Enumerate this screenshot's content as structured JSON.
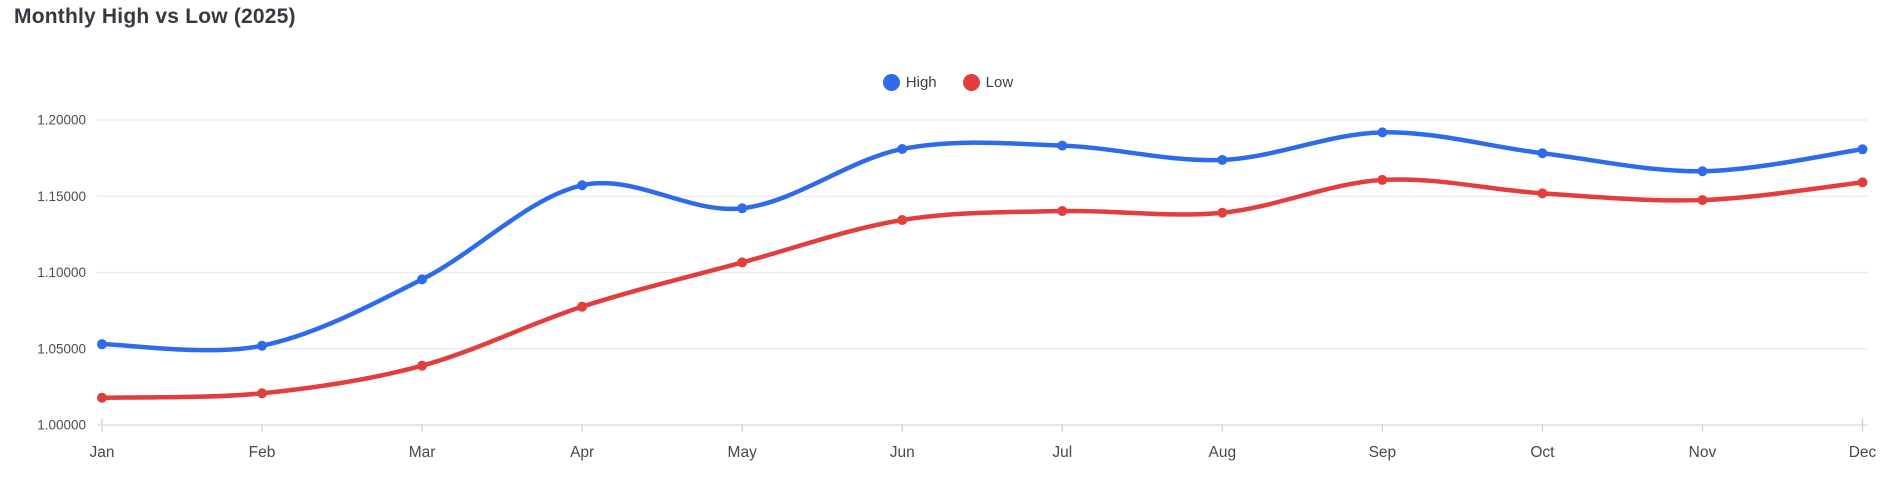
{
  "chart_data": {
    "type": "line",
    "title": "Monthly High vs Low (2025)",
    "categories": [
      "Jan",
      "Feb",
      "Mar",
      "Apr",
      "May",
      "Jun",
      "Jul",
      "Aug",
      "Sep",
      "Oct",
      "Nov",
      "Dec"
    ],
    "series": [
      {
        "name": "High",
        "color": "#2d6bea",
        "values": [
          1.053,
          1.052,
          1.0955,
          1.1572,
          1.1421,
          1.181,
          1.1832,
          1.1738,
          1.1919,
          1.1782,
          1.1664,
          1.1808
        ]
      },
      {
        "name": "Low",
        "color": "#e23e3e",
        "values": [
          1.0179,
          1.0208,
          1.0389,
          1.0776,
          1.1066,
          1.1344,
          1.1403,
          1.1392,
          1.1607,
          1.1519,
          1.1475,
          1.1591
        ]
      }
    ],
    "ylim": [
      1.0,
      1.2
    ],
    "yticks": [
      1.0,
      1.05,
      1.1,
      1.15,
      1.2
    ],
    "ytick_decimals": 5,
    "xlabel": "",
    "ylabel": "",
    "grid": true,
    "smooth": true,
    "legend_position": "top-center",
    "point_radius": 5,
    "line_width": 4.5
  },
  "colors": {
    "grid": "#e9eaeb",
    "baseline": "#d9dbdd",
    "tick": "#ced1d4",
    "title_text": "#333a41",
    "legend_text": "#3c4043",
    "y_label_text": "#4a4e53",
    "x_label_text": "#45494e",
    "background": "#ffffff"
  }
}
